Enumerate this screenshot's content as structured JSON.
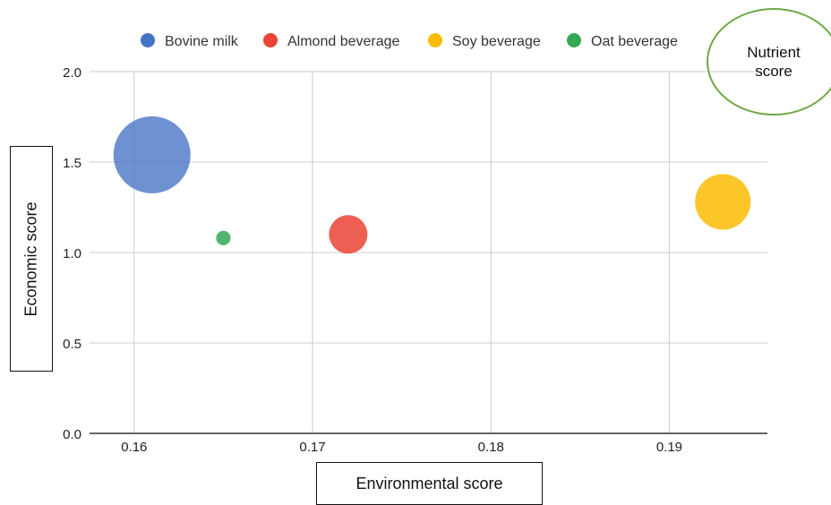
{
  "chart_data": {
    "type": "scatter",
    "subtype": "bubble",
    "title": "",
    "xlabel": "Environmental score",
    "ylabel": "Economic score",
    "size_label": "Nutrient score",
    "xlim": [
      0.1575,
      0.1955
    ],
    "ylim": [
      0,
      2.0
    ],
    "x_ticks": [
      "0.16",
      "0.17",
      "0.18",
      "0.19"
    ],
    "x_tick_values": [
      0.16,
      0.17,
      0.18,
      0.19
    ],
    "y_ticks": [
      "0.0",
      "0.5",
      "1.0",
      "1.5",
      "2.0"
    ],
    "y_tick_values": [
      0,
      0.5,
      1.0,
      1.5,
      2.0
    ],
    "grid": true,
    "legend_position": "top",
    "series": [
      {
        "name": "Bovine milk",
        "color": "#4472c4",
        "x": 0.161,
        "y": 1.54,
        "size": 1.0
      },
      {
        "name": "Almond beverage",
        "color": "#ea4335",
        "x": 0.172,
        "y": 1.1,
        "size": 0.25
      },
      {
        "name": "Soy beverage",
        "color": "#fbbc04",
        "x": 0.193,
        "y": 1.28,
        "size": 0.52
      },
      {
        "name": "Oat beverage",
        "color": "#34a853",
        "x": 0.165,
        "y": 1.08,
        "size": 0.035
      }
    ]
  },
  "labels": {
    "xlabel": "Environmental score",
    "ylabel": "Economic score",
    "nutrient_line1": "Nutrient",
    "nutrient_line2": "score"
  }
}
